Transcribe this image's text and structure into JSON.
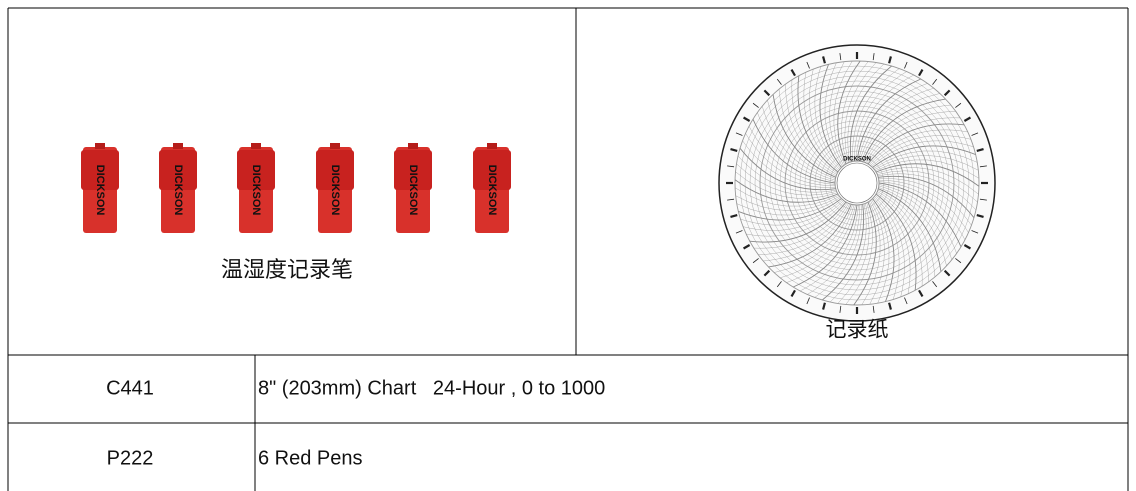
{
  "top_row": {
    "pens": {
      "brand": "DICKSON",
      "caption": "温湿度记录笔"
    },
    "chart_paper": {
      "brand": "DICKSON",
      "caption": "记录纸"
    }
  },
  "table": {
    "rows": [
      [
        "C441",
        "8\" (203mm) Chart   24-Hour , 0 to 1000"
      ],
      [
        "P222",
        "6 Red Pens"
      ]
    ]
  }
}
